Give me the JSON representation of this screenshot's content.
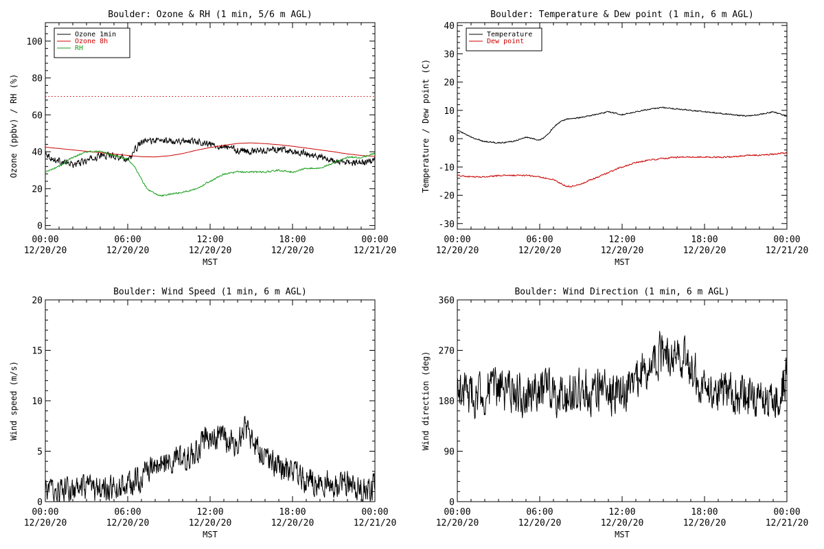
{
  "colors": {
    "background": "#ffffff",
    "axis": "#000000",
    "black": "#000000",
    "red": "#cc0000",
    "green": "#1a9e1a"
  },
  "chart_data": [
    {
      "id": "ozone_rh",
      "type": "line",
      "title": "Boulder: Ozone & RH (1 min, 5/6 m AGL)",
      "xlabel": "MST",
      "ylabel": "Ozone (ppbv) / RH (%)",
      "xlim": [
        0,
        24
      ],
      "ylim": [
        -2,
        110
      ],
      "yticks": [
        0,
        20,
        40,
        60,
        80,
        100
      ],
      "xticks": [
        {
          "value": 0,
          "time": "00:00",
          "date": "12/20/20"
        },
        {
          "value": 6,
          "time": "06:00",
          "date": "12/20/20"
        },
        {
          "value": 12,
          "time": "12:00",
          "date": "12/20/20"
        },
        {
          "value": 18,
          "time": "18:00",
          "date": "12/20/20"
        },
        {
          "value": 24,
          "time": "00:00",
          "date": "12/21/20"
        }
      ],
      "legend": "top-left",
      "grid": false,
      "series": [
        {
          "name": "Ozone 1min",
          "color": "#000000",
          "noise": 2.5,
          "x": [
            0,
            0.5,
            1,
            2,
            3,
            4,
            5,
            6,
            6.3,
            6.8,
            7.5,
            8,
            9,
            10,
            11,
            12,
            13,
            14,
            15,
            16,
            17,
            18,
            19,
            20,
            21,
            22,
            23,
            24
          ],
          "y": [
            40,
            36,
            35,
            33,
            35,
            38,
            38,
            36,
            38,
            44,
            46,
            46,
            46,
            46,
            46,
            44,
            43,
            41,
            40,
            41,
            41,
            40,
            39,
            37,
            35,
            34,
            34,
            35
          ]
        },
        {
          "name": "Ozone 8h",
          "color": "#cc0000",
          "noise": 0,
          "x": [
            0,
            2,
            4,
            6,
            7,
            8,
            9,
            10,
            11,
            12,
            13,
            14,
            15,
            16,
            17,
            18,
            19,
            20,
            21,
            22,
            23,
            24
          ],
          "y": [
            42.5,
            41,
            39.5,
            38,
            37.3,
            37.2,
            37.8,
            39,
            40.8,
            42.3,
            43.5,
            44.5,
            44.8,
            44.4,
            43.8,
            43,
            42,
            41,
            40,
            38.8,
            38,
            37.5
          ]
        },
        {
          "name": "RH",
          "color": "#1a9e1a",
          "noise": 0.6,
          "x": [
            0,
            1,
            2,
            3,
            4,
            5,
            6,
            6.5,
            7,
            7.4,
            8,
            8.5,
            9,
            10,
            11,
            12,
            13,
            14,
            15,
            16,
            17,
            18,
            19,
            20,
            21,
            22,
            23,
            24
          ],
          "y": [
            29,
            32,
            37,
            40,
            40,
            38,
            36,
            32,
            25,
            20,
            17,
            16,
            17,
            18,
            20,
            24,
            28,
            29,
            29,
            29,
            30,
            29,
            31,
            31,
            34,
            37,
            37,
            39
          ]
        },
        {
          "name": "",
          "color": "#cc0000",
          "dotted": true,
          "noise": 0,
          "x": [
            0,
            24
          ],
          "y": [
            70,
            70
          ]
        }
      ]
    },
    {
      "id": "temp_dew",
      "type": "line",
      "title": "Boulder: Temperature & Dew point (1 min, 6 m AGL)",
      "xlabel": "MST",
      "ylabel": "Temperature / Dew point (C)",
      "xlim": [
        0,
        24
      ],
      "ylim": [
        -32,
        41
      ],
      "yticks": [
        -30,
        -20,
        -10,
        0,
        10,
        20,
        30,
        40
      ],
      "xticks": [
        {
          "value": 0,
          "time": "00:00",
          "date": "12/20/20"
        },
        {
          "value": 6,
          "time": "06:00",
          "date": "12/20/20"
        },
        {
          "value": 12,
          "time": "12:00",
          "date": "12/20/20"
        },
        {
          "value": 18,
          "time": "18:00",
          "date": "12/20/20"
        },
        {
          "value": 24,
          "time": "00:00",
          "date": "12/21/20"
        }
      ],
      "legend": "top-left",
      "grid": false,
      "series": [
        {
          "name": "Temperature",
          "color": "#000000",
          "noise": 0.3,
          "x": [
            0,
            1,
            2,
            3,
            4,
            5,
            6,
            6.5,
            7,
            7.5,
            8,
            9,
            10,
            11,
            12,
            13,
            14,
            15,
            16,
            17,
            18,
            19,
            20,
            21,
            22,
            23,
            24
          ],
          "y": [
            3,
            0.5,
            -1,
            -1.5,
            -1,
            0.5,
            -0.5,
            1,
            4,
            6,
            7,
            7.5,
            8.5,
            9.5,
            8.5,
            9.5,
            10.5,
            11,
            10.5,
            10,
            9.5,
            9,
            8.5,
            8,
            8.5,
            9.5,
            8
          ]
        },
        {
          "name": "Dew point",
          "color": "#cc0000",
          "noise": 0.35,
          "x": [
            0,
            1,
            2,
            3,
            4,
            5,
            6,
            7,
            7.8,
            8.2,
            9,
            10,
            11,
            12,
            13,
            14,
            15,
            16,
            17,
            18,
            19,
            20,
            21,
            22,
            23,
            24
          ],
          "y": [
            -13,
            -13.5,
            -13.5,
            -13,
            -13,
            -13,
            -13.5,
            -14.5,
            -16.5,
            -17,
            -16,
            -14,
            -12,
            -10,
            -8.5,
            -7.5,
            -7,
            -6.5,
            -6.5,
            -6.5,
            -6.5,
            -6.5,
            -6,
            -5.8,
            -5.5,
            -5
          ]
        }
      ]
    },
    {
      "id": "wind_speed",
      "type": "line",
      "title": "Boulder: Wind Speed (1 min, 6 m AGL)",
      "xlabel": "MST",
      "ylabel": "Wind speed (m/s)",
      "xlim": [
        0,
        24
      ],
      "ylim": [
        0,
        20
      ],
      "yticks": [
        0,
        5,
        10,
        15,
        20
      ],
      "xticks": [
        {
          "value": 0,
          "time": "00:00",
          "date": "12/20/20"
        },
        {
          "value": 6,
          "time": "06:00",
          "date": "12/20/20"
        },
        {
          "value": 12,
          "time": "12:00",
          "date": "12/20/20"
        },
        {
          "value": 18,
          "time": "18:00",
          "date": "12/20/20"
        },
        {
          "value": 24,
          "time": "00:00",
          "date": "12/21/20"
        }
      ],
      "grid": false,
      "series": [
        {
          "name": "",
          "color": "#000000",
          "noise": 1.8,
          "clip": [
            0,
            13.8
          ],
          "x": [
            0,
            2,
            4,
            6,
            7,
            8,
            9,
            10,
            11,
            11.5,
            12,
            13,
            14,
            14.5,
            15,
            16,
            17,
            18,
            19,
            20,
            21,
            22,
            23,
            24
          ],
          "y": [
            1.2,
            1,
            1.2,
            1.5,
            2.5,
            3.5,
            3.8,
            4.2,
            4.8,
            6,
            6.5,
            6.2,
            5.8,
            7.5,
            6,
            4.5,
            3.5,
            3,
            2.2,
            2,
            1.8,
            1.8,
            1.5,
            1.5
          ]
        }
      ]
    },
    {
      "id": "wind_dir",
      "type": "line",
      "title": "Boulder: Wind Direction (1 min, 6 m AGL)",
      "xlabel": "MST",
      "ylabel": "Wind direction (deg)",
      "xlim": [
        0,
        24
      ],
      "ylim": [
        0,
        360
      ],
      "yticks": [
        0,
        90,
        180,
        270,
        360
      ],
      "xticks": [
        {
          "value": 0,
          "time": "00:00",
          "date": "12/20/20"
        },
        {
          "value": 6,
          "time": "06:00",
          "date": "12/20/20"
        },
        {
          "value": 12,
          "time": "12:00",
          "date": "12/20/20"
        },
        {
          "value": 18,
          "time": "18:00",
          "date": "12/20/20"
        },
        {
          "value": 24,
          "time": "00:00",
          "date": "12/21/20"
        }
      ],
      "grid": false,
      "series": [
        {
          "name": "",
          "color": "#000000",
          "noise": 55,
          "clip": [
            0,
            360
          ],
          "x": [
            0,
            1,
            2,
            3,
            4,
            5,
            6,
            7,
            8,
            9,
            10,
            11,
            12,
            13,
            14,
            15,
            16,
            17,
            18,
            19,
            20,
            21,
            22,
            23,
            24
          ],
          "y": [
            200,
            190,
            195,
            200,
            195,
            190,
            195,
            200,
            190,
            195,
            200,
            200,
            195,
            215,
            250,
            265,
            270,
            240,
            190,
            195,
            200,
            190,
            180,
            175,
            220
          ]
        }
      ]
    }
  ]
}
